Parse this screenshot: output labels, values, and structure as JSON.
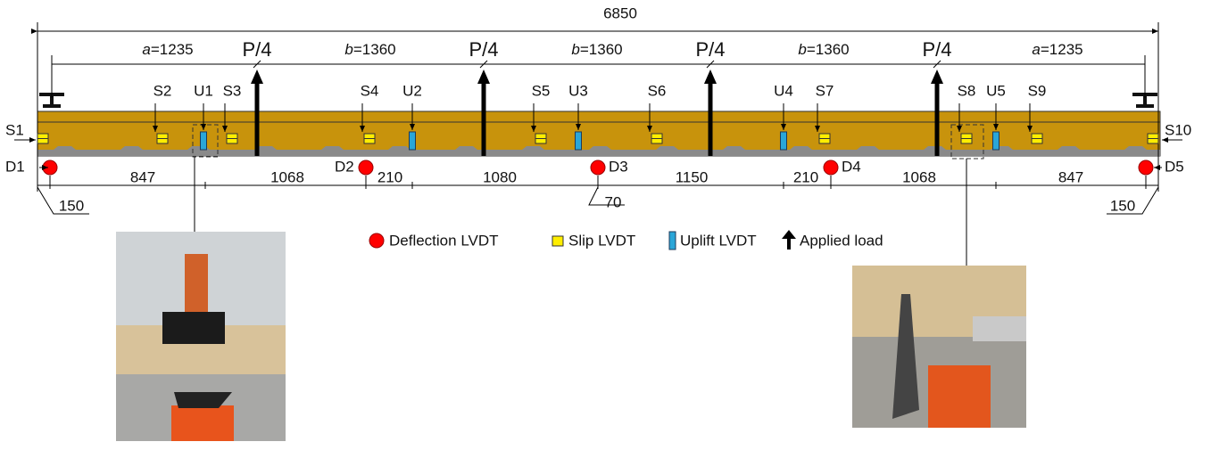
{
  "overall_length": "6850",
  "spans": [
    {
      "symbol": "a",
      "rest": "=1235"
    },
    {
      "symbol": "b",
      "rest": "=1360"
    },
    {
      "symbol": "b",
      "rest": "=1360"
    },
    {
      "symbol": "b",
      "rest": "=1360"
    },
    {
      "symbol": "a",
      "rest": "=1235"
    }
  ],
  "loads": [
    "P/4",
    "P/4",
    "P/4",
    "P/4"
  ],
  "slip_sensors": [
    "S1",
    "S2",
    "S3",
    "S4",
    "S5",
    "S6",
    "S7",
    "S8",
    "S9",
    "S10"
  ],
  "uplift_sensors": [
    "U1",
    "U2",
    "U3",
    "U4",
    "U5"
  ],
  "deflection_sensors": [
    "D1",
    "D2",
    "D3",
    "D4",
    "D5"
  ],
  "bottom_dims": [
    "847",
    "1068",
    "210",
    "1080",
    "70",
    "1150",
    "210",
    "1068",
    "847",
    "150",
    "150"
  ],
  "legend": [
    "Deflection LVDT",
    "Slip LVDT",
    "Uplift LVDT",
    "Applied load"
  ]
}
